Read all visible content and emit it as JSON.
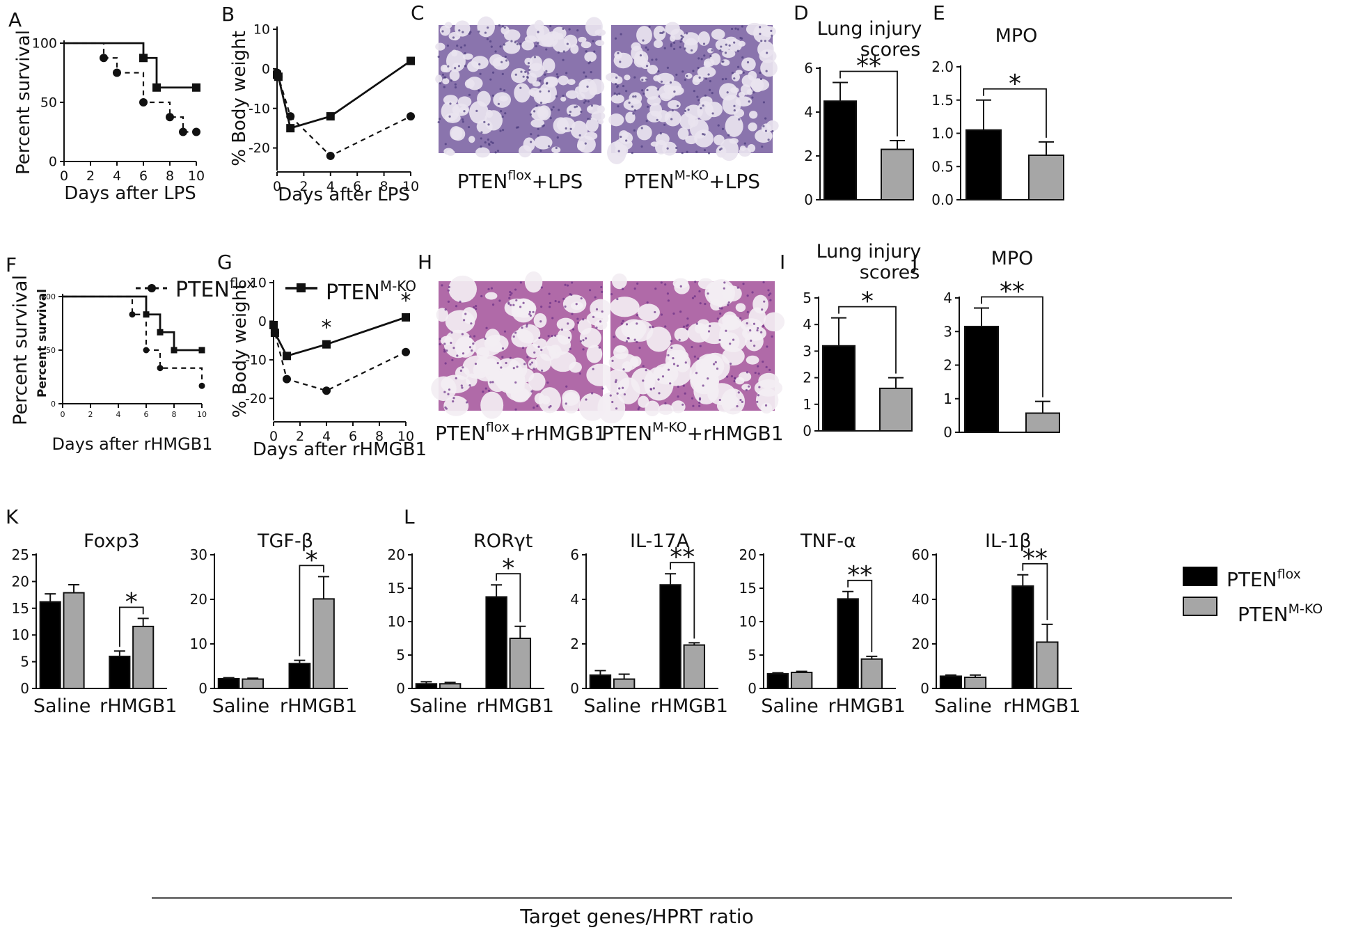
{
  "legend_lines": {
    "flox_prefix": "PTEN",
    "flox_sup": "flox",
    "ko_prefix": "PTEN",
    "ko_sup": "M-KO"
  },
  "legend_bars": {
    "flox_prefix": "PTEN",
    "flox_sup": "flox",
    "ko_prefix": "PTEN",
    "ko_sup": "M-KO"
  },
  "bottom_label": "Target genes/HPRT ratio",
  "chart_data": [
    {
      "id": "A",
      "panel_letter": "A",
      "type": "line",
      "step": true,
      "title": "",
      "xlabel": "Days after LPS",
      "ylabel": "Percent survival",
      "xlim": [
        0,
        10
      ],
      "ylim": [
        0,
        100
      ],
      "xticks": [
        0,
        2,
        4,
        6,
        8,
        10
      ],
      "yticks": [
        0,
        50,
        100
      ],
      "series": [
        {
          "style": "dashed",
          "marker": "circle",
          "x": [
            0,
            3,
            4,
            6,
            8,
            9,
            10
          ],
          "y": [
            100,
            87.5,
            75,
            50,
            37.5,
            25,
            25
          ]
        },
        {
          "style": "solid",
          "marker": "square",
          "x": [
            0,
            6,
            7,
            10
          ],
          "y": [
            100,
            87.5,
            62.5,
            62.5
          ]
        }
      ]
    },
    {
      "id": "B",
      "panel_letter": "B",
      "type": "line",
      "title": "",
      "xlabel": "Days after LPS",
      "ylabel": "% Body weight",
      "xlim": [
        0,
        10
      ],
      "ylim": [
        -25,
        10
      ],
      "xticks": [
        0,
        2,
        4,
        6,
        8,
        10
      ],
      "yticks": [
        -20,
        -10,
        0,
        10
      ],
      "series": [
        {
          "style": "dashed",
          "marker": "circle",
          "x": [
            0,
            0.1,
            1,
            4,
            10
          ],
          "y": [
            -1,
            -2,
            -12,
            -22,
            -12
          ]
        },
        {
          "style": "solid",
          "marker": "square",
          "x": [
            0,
            0.1,
            1,
            4,
            10
          ],
          "y": [
            -1.5,
            -2,
            -15,
            -12,
            2
          ]
        }
      ]
    },
    {
      "id": "D",
      "panel_letter": "D",
      "type": "bar",
      "title_lines": [
        "Lung injury",
        "scores"
      ],
      "categories": [
        "PTEN flox",
        "PTEN M-KO"
      ],
      "values": [
        4.5,
        2.3
      ],
      "errors": [
        0.85,
        0.4
      ],
      "ylim": [
        0,
        6
      ],
      "yticks": [
        0,
        2,
        4,
        6
      ],
      "signif": "**"
    },
    {
      "id": "E",
      "panel_letter": "E",
      "type": "bar",
      "title_lines": [
        "MPO"
      ],
      "categories": [
        "PTEN flox",
        "PTEN M-KO"
      ],
      "values": [
        1.05,
        0.67
      ],
      "errors": [
        0.45,
        0.2
      ],
      "ylim": [
        0,
        2
      ],
      "yticks": [
        "0.0",
        "0.5",
        "1.0",
        "1.5",
        "2.0"
      ],
      "signif": "*"
    },
    {
      "id": "F",
      "panel_letter": "F",
      "type": "line",
      "step": true,
      "title": "",
      "xlabel": "Days after rHMGB1",
      "ylabel": "Percent survival",
      "ylabel_inner": "Percent survival",
      "xlim": [
        0,
        10
      ],
      "ylim": [
        0,
        100
      ],
      "xticks": [
        0,
        2,
        4,
        6,
        8,
        10
      ],
      "yticks": [
        0,
        50,
        100
      ],
      "series": [
        {
          "style": "dashed",
          "marker": "circle",
          "x": [
            0,
            5,
            6,
            7,
            10
          ],
          "y": [
            100,
            83.3,
            50,
            33.3,
            16.7
          ]
        },
        {
          "style": "solid",
          "marker": "square",
          "x": [
            0,
            6,
            7,
            8,
            10
          ],
          "y": [
            100,
            83.3,
            66.7,
            50,
            50
          ]
        }
      ]
    },
    {
      "id": "G",
      "panel_letter": "G",
      "type": "line",
      "title": "",
      "xlabel": "Days after rHMGB1",
      "ylabel": "% Body weight",
      "xlim": [
        0,
        10
      ],
      "ylim": [
        -25,
        10
      ],
      "xticks": [
        0,
        2,
        4,
        6,
        8,
        10
      ],
      "yticks": [
        -20,
        -10,
        0,
        10
      ],
      "annotations": [
        {
          "x": 4,
          "text": "*"
        },
        {
          "x": 10,
          "text": "*"
        }
      ],
      "series": [
        {
          "style": "dashed",
          "marker": "circle",
          "x": [
            0,
            0.1,
            1,
            4,
            10
          ],
          "y": [
            -1,
            -3,
            -15,
            -18,
            -8
          ]
        },
        {
          "style": "solid",
          "marker": "square",
          "x": [
            0,
            0.1,
            1,
            4,
            10
          ],
          "y": [
            -1,
            -3,
            -9,
            -6,
            1
          ]
        }
      ]
    },
    {
      "id": "I",
      "panel_letter": "I",
      "type": "bar",
      "title_lines": [
        "Lung injury",
        "scores"
      ],
      "categories": [
        "PTEN flox",
        "PTEN M-KO"
      ],
      "values": [
        3.2,
        1.6
      ],
      "errors": [
        1.05,
        0.4
      ],
      "ylim": [
        0,
        5
      ],
      "yticks": [
        0,
        1,
        2,
        3,
        4,
        5
      ],
      "signif": "*"
    },
    {
      "id": "J",
      "panel_letter": "J",
      "type": "bar",
      "title_lines": [
        "MPO"
      ],
      "categories": [
        "PTEN flox",
        "PTEN M-KO"
      ],
      "values": [
        3.15,
        0.57
      ],
      "errors": [
        0.55,
        0.35
      ],
      "ylim": [
        0,
        4
      ],
      "yticks": [
        0,
        1,
        2,
        3,
        4
      ],
      "signif": "**"
    },
    {
      "id": "K1",
      "panel_letter": "K",
      "type": "bar",
      "title": "Foxp3",
      "categories": [
        "Saline",
        "rHMGB1"
      ],
      "series": [
        {
          "name": "PTEN flox",
          "values": [
            16.2,
            6.0
          ],
          "errors": [
            1.5,
            1.0
          ]
        },
        {
          "name": "PTEN M-KO",
          "values": [
            17.9,
            11.6
          ],
          "errors": [
            1.5,
            1.5
          ]
        }
      ],
      "ylim": [
        0,
        25
      ],
      "yticks": [
        0,
        5,
        10,
        15,
        20,
        25
      ],
      "signif": "*"
    },
    {
      "id": "K2",
      "type": "bar",
      "title": "TGF-β",
      "categories": [
        "Saline",
        "rHMGB1"
      ],
      "series": [
        {
          "name": "PTEN flox",
          "values": [
            2.2,
            5.6
          ],
          "errors": [
            0.2,
            0.7
          ]
        },
        {
          "name": "PTEN M-KO",
          "values": [
            2.1,
            20.1
          ],
          "errors": [
            0.2,
            5.0
          ]
        }
      ],
      "ylim": [
        0,
        30
      ],
      "yticks": [
        0,
        10,
        20,
        30
      ],
      "signif": "*"
    },
    {
      "id": "L1",
      "panel_letter": "L",
      "type": "bar",
      "title": "RORγt",
      "categories": [
        "Saline",
        "rHMGB1"
      ],
      "series": [
        {
          "name": "PTEN flox",
          "values": [
            0.7,
            13.7
          ],
          "errors": [
            0.3,
            1.8
          ]
        },
        {
          "name": "PTEN M-KO",
          "values": [
            0.7,
            7.5
          ],
          "errors": [
            0.2,
            1.8
          ]
        }
      ],
      "ylim": [
        0,
        20
      ],
      "yticks": [
        0,
        5,
        10,
        15,
        20
      ],
      "signif": "*"
    },
    {
      "id": "L2",
      "type": "bar",
      "title": "IL-17A",
      "categories": [
        "Saline",
        "rHMGB1"
      ],
      "series": [
        {
          "name": "PTEN flox",
          "values": [
            0.6,
            4.65
          ],
          "errors": [
            0.2,
            0.5
          ]
        },
        {
          "name": "PTEN M-KO",
          "values": [
            0.42,
            1.95
          ],
          "errors": [
            0.22,
            0.1
          ]
        }
      ],
      "ylim": [
        0,
        6
      ],
      "yticks": [
        0,
        2,
        4,
        6
      ],
      "signif": "**"
    },
    {
      "id": "L3",
      "type": "bar",
      "title": "TNF-α",
      "categories": [
        "Saline",
        "rHMGB1"
      ],
      "series": [
        {
          "name": "PTEN flox",
          "values": [
            2.2,
            13.4
          ],
          "errors": [
            0.15,
            1.1
          ]
        },
        {
          "name": "PTEN M-KO",
          "values": [
            2.4,
            4.4
          ],
          "errors": [
            0.15,
            0.4
          ]
        }
      ],
      "ylim": [
        0,
        20
      ],
      "yticks": [
        0,
        5,
        10,
        15,
        20
      ],
      "signif": "**"
    },
    {
      "id": "L4",
      "type": "bar",
      "title": "IL-1β",
      "categories": [
        "Saline",
        "rHMGB1"
      ],
      "series": [
        {
          "name": "PTEN flox",
          "values": [
            5.5,
            46.0
          ],
          "errors": [
            0.5,
            5.0
          ]
        },
        {
          "name": "PTEN M-KO",
          "values": [
            5.0,
            20.8
          ],
          "errors": [
            1.0,
            8.0
          ]
        }
      ],
      "ylim": [
        0,
        60
      ],
      "yticks": [
        0,
        20,
        40,
        60
      ],
      "signif": "**"
    }
  ],
  "histology": [
    {
      "id": "C",
      "panel_letter": "C",
      "captions": [
        {
          "prefix": "PTEN",
          "sup": "flox",
          "suffix": "+LPS",
          "tone": "light"
        },
        {
          "prefix": "PTEN",
          "sup": "M-KO",
          "suffix": "+LPS",
          "tone": "light"
        }
      ]
    },
    {
      "id": "H",
      "panel_letter": "H",
      "captions": [
        {
          "prefix": "PTEN",
          "sup": "flox",
          "suffix": "+rHMGB1",
          "tone": "dense"
        },
        {
          "prefix": "PTEN",
          "sup": "M-KO",
          "suffix": "+rHMGB1",
          "tone": "dense"
        }
      ]
    }
  ],
  "colors": {
    "flox": "#000000",
    "ko": "#a6a6a6",
    "axis": "#111111",
    "histo_bg": "#e6d9ef",
    "histo_tissue": "#7d5ba6",
    "histo_pink": "#c86a9a"
  }
}
